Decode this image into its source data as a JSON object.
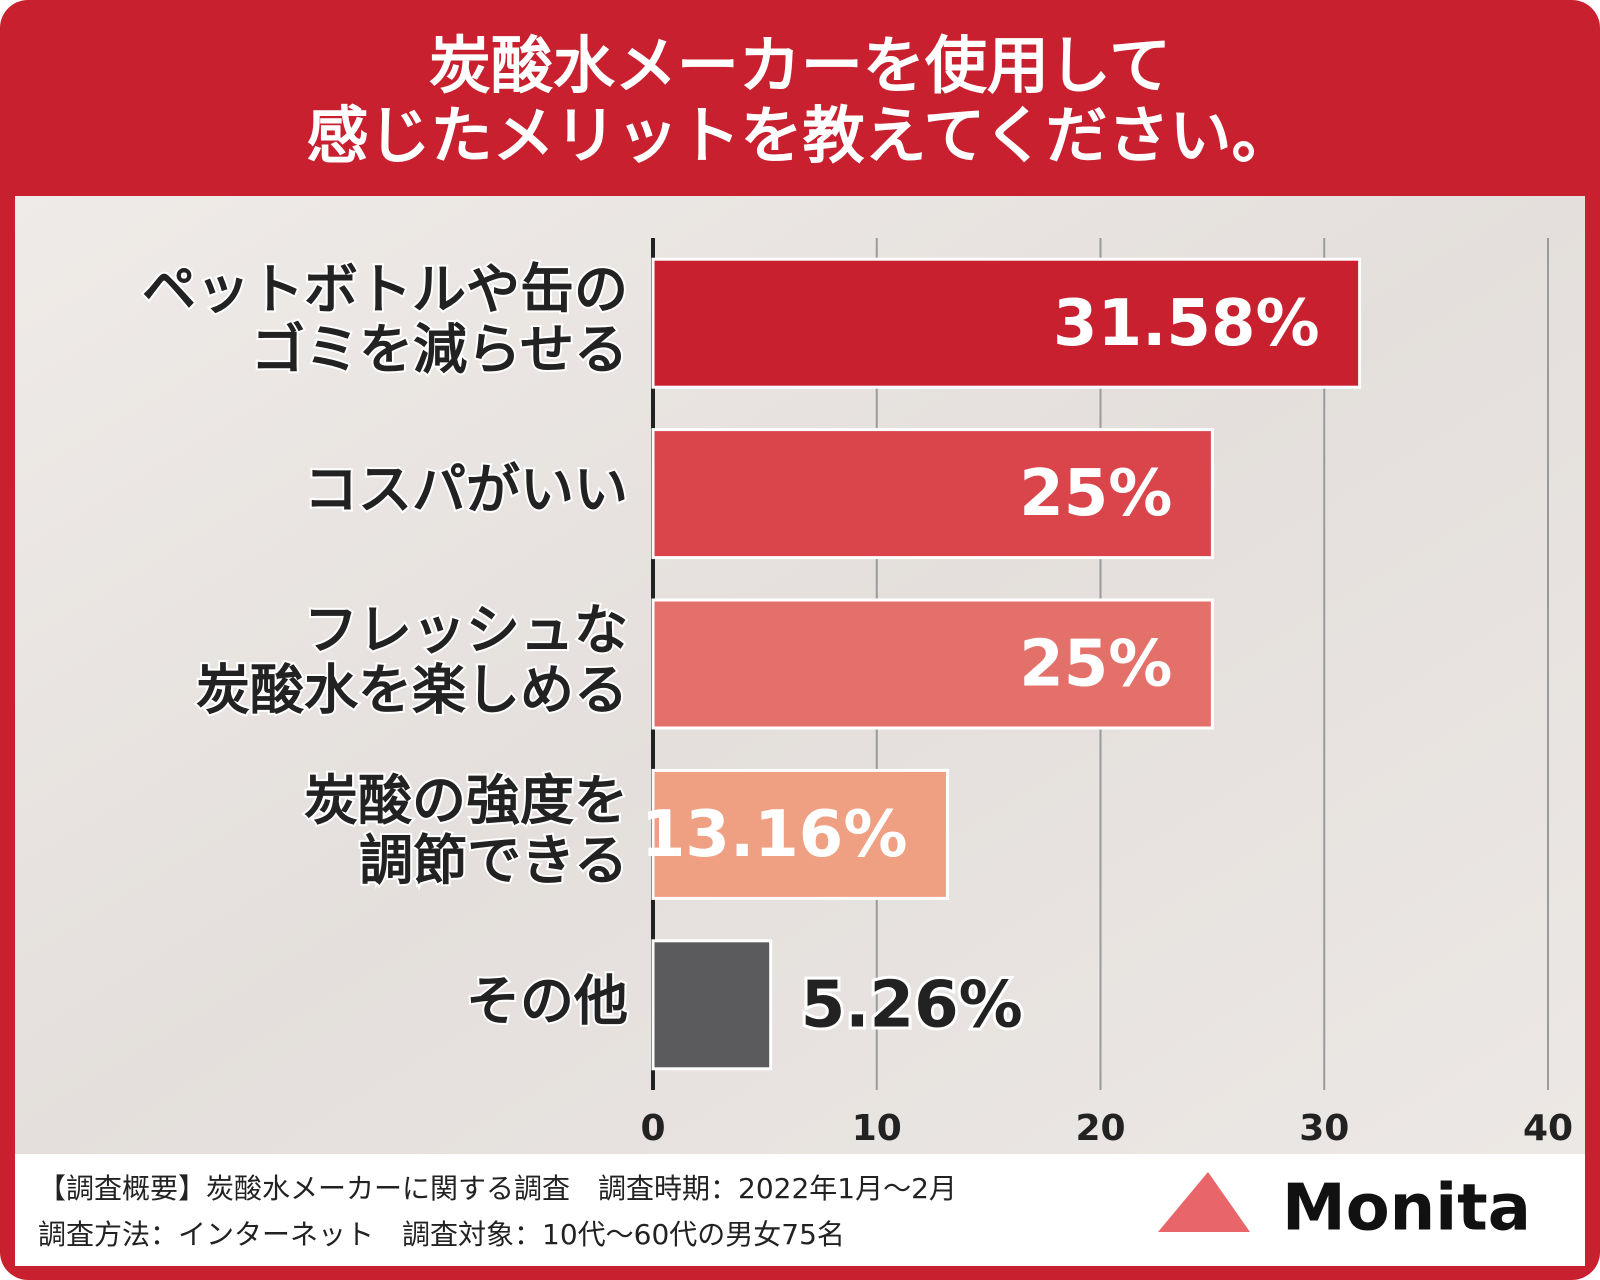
{
  "chart_data": {
    "type": "barh",
    "title": [
      "炭酸水メーカーを使用して",
      "感じたメリットを教えてください。"
    ],
    "categories": [
      [
        "ペットボトルや缶の",
        "ゴミを減らせる"
      ],
      [
        "コスパがいい"
      ],
      [
        "フレッシュな",
        "炭酸水を楽しめる"
      ],
      [
        "炭酸の強度を",
        "調節できる"
      ],
      [
        "その他"
      ]
    ],
    "values": [
      31.58,
      25,
      25,
      13.16,
      5.26
    ],
    "value_labels": [
      "31.58%",
      "25%",
      "25%",
      "13.16%",
      "5.26%"
    ],
    "colors": [
      "#c8202f",
      "#d9454b",
      "#e4706a",
      "#f0a082",
      "#5b5b5d"
    ],
    "xlim": [
      0,
      40
    ],
    "xticks": [
      0,
      10,
      20,
      30,
      40
    ],
    "grid": true
  },
  "footer": {
    "notes": [
      "【調査概要】炭酸水メーカーに関する調査　調査時期：2022年1月～2月",
      "調査方法：インターネット　調査対象：10代～60代の男女75名"
    ],
    "brand": "Monita"
  }
}
